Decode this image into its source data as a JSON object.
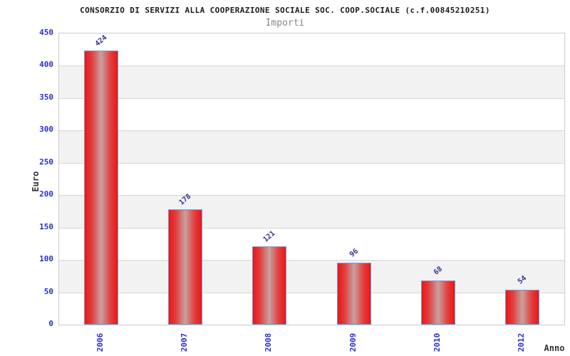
{
  "chart_data": {
    "type": "bar",
    "title": "CONSORZIO DI SERVIZI ALLA COOPERAZIONE SOCIALE SOC. COOP.SOCIALE (c.f.00845210251)",
    "subtitle": "Importi",
    "xlabel": "Anno",
    "ylabel": "Euro",
    "categories": [
      "2006",
      "2007",
      "2008",
      "2009",
      "2010",
      "2012"
    ],
    "values": [
      424,
      178,
      121,
      96,
      68,
      54
    ],
    "ylim": [
      0,
      450
    ],
    "yticks": [
      0,
      50,
      100,
      150,
      200,
      250,
      300,
      350,
      400,
      450
    ],
    "grid": true,
    "legend_position": "none",
    "colors": {
      "bar_fill_edge": "#ee1515",
      "bar_fill_mid": "#e04040",
      "bar_fill_center": "#c9a0a0",
      "bar_border": "#63a0dc",
      "axis_tick_text": "#2b2bdd",
      "data_label_text": "#333399",
      "band_gray": "#f2f2f2",
      "band_white": "#ffffff",
      "gridline": "#d6d6d6",
      "plot_border": "#cccccc",
      "title_text": "#1b1b1b",
      "subtitle_text": "#898989",
      "axis_title_text": "#333333",
      "background": "#ffffff"
    }
  }
}
